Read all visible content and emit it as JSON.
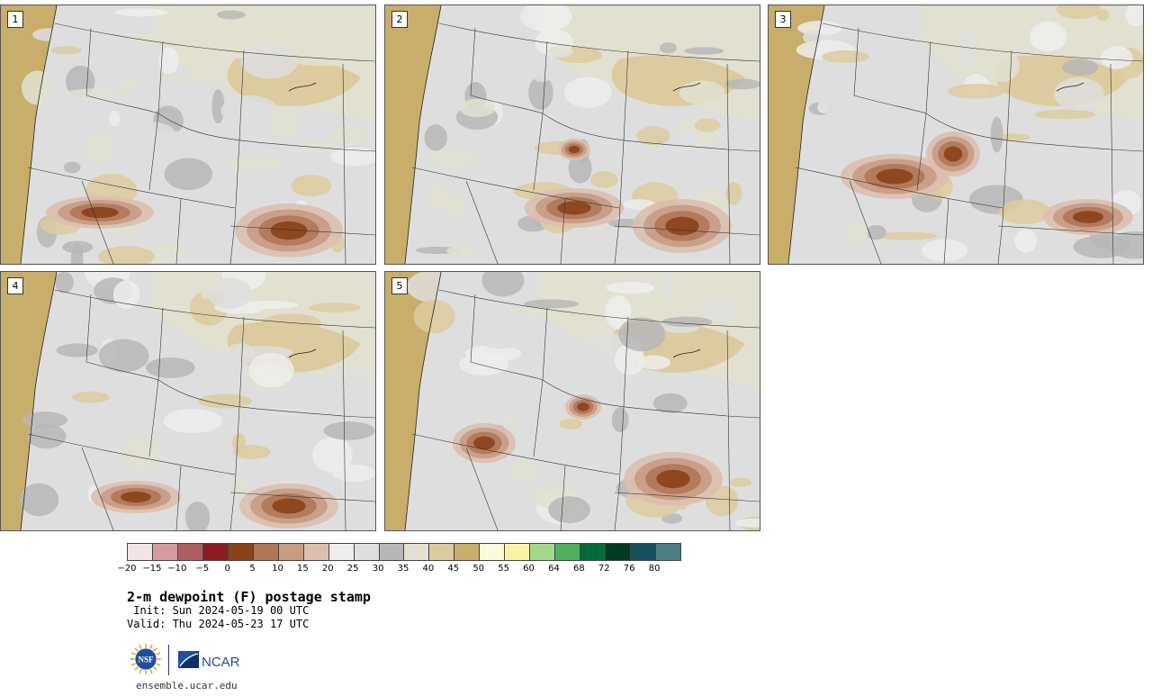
{
  "panels": [
    {
      "label": "1"
    },
    {
      "label": "2"
    },
    {
      "label": "3"
    },
    {
      "label": "4"
    },
    {
      "label": "5"
    }
  ],
  "colorbar": {
    "colors": [
      "#f1e4e4",
      "#d49c9f",
      "#b15e63",
      "#8c1c24",
      "#8a421a",
      "#b07657",
      "#c79b84",
      "#dcbfae",
      "#ededed",
      "#dedede",
      "#b7b7b7",
      "#e1e0d1",
      "#dccb9e",
      "#c8ad6b",
      "#fdfad9",
      "#f6f3a7",
      "#a4d889",
      "#4faf5f",
      "#006b3a",
      "#003a22",
      "#164f5d",
      "#4f7f84"
    ],
    "ticks": [
      "−20",
      "−15",
      "−10",
      "−5",
      "0",
      "5",
      "10",
      "15",
      "20",
      "25",
      "30",
      "35",
      "40",
      "45",
      "50",
      "55",
      "60",
      "64",
      "68",
      "72",
      "76",
      "80"
    ]
  },
  "title": "2-m dewpoint (F) postage stamp",
  "init": " Init: Sun 2024-05-19 00 UTC",
  "valid": "Valid: Thu 2024-05-23 17 UTC",
  "logos": {
    "nsf": "NSF",
    "ncar": "NCAR"
  },
  "site": "ensemble.ucar.edu"
}
